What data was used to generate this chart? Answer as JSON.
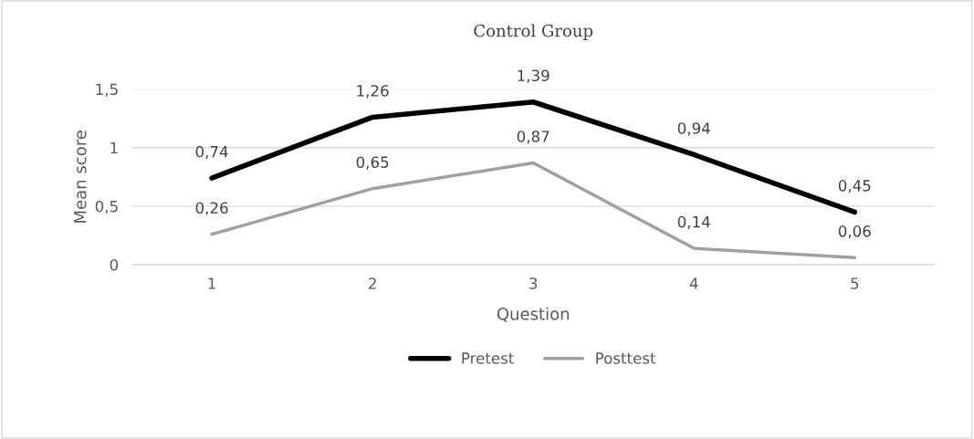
{
  "chart_data": {
    "type": "line",
    "title": "Control Group",
    "xlabel": "Question",
    "ylabel": "Mean score",
    "categories": [
      "1",
      "2",
      "3",
      "4",
      "5"
    ],
    "series": [
      {
        "name": "Pretest",
        "color": "#000000",
        "values": [
          0.74,
          1.26,
          1.39,
          0.94,
          0.45
        ],
        "value_labels": [
          "0,74",
          "1,26",
          "1,39",
          "0,94",
          "0,45"
        ]
      },
      {
        "name": "Posttest",
        "color": "#a0a0a0",
        "values": [
          0.26,
          0.65,
          0.87,
          0.14,
          0.06
        ],
        "value_labels": [
          "0,26",
          "0,65",
          "0,87",
          "0,14",
          "0,06"
        ]
      }
    ],
    "ylim": [
      0,
      1.5
    ],
    "yticks": [
      0,
      {
        "value": 0.5,
        "label": "0,5"
      },
      {
        "value": 1,
        "label": "1"
      },
      {
        "value": 1.5,
        "label": "1,5"
      }
    ],
    "grid": "y",
    "legend": "bottom",
    "marker": "none",
    "line_style": "solid"
  }
}
